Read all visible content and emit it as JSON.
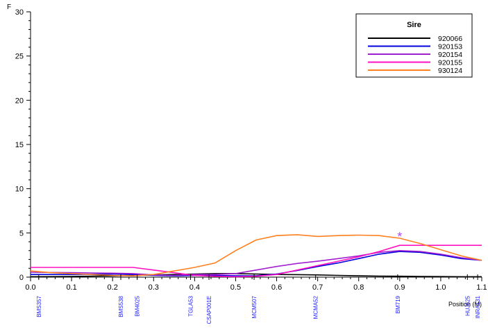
{
  "chart_data": {
    "type": "line",
    "ylabel": "F",
    "xlabel": "Position (M)",
    "xlim": [
      0,
      1.1
    ],
    "ylim": [
      0,
      30
    ],
    "xticks": [
      0.0,
      0.1,
      0.2,
      0.3,
      0.4,
      0.5,
      0.6,
      0.7,
      0.8,
      0.9,
      1.0,
      1.1
    ],
    "xtick_labels": [
      "0.0",
      "0.1",
      "0.2",
      "0.3",
      "0.4",
      "0.5",
      "0.6",
      "0.7",
      "0.8",
      "0.9",
      "1.0",
      "1.1"
    ],
    "yticks": [
      0,
      5,
      10,
      15,
      20,
      25,
      30
    ],
    "ytick_labels": [
      "0",
      "5",
      "10",
      "15",
      "20",
      "25",
      "30"
    ],
    "grid": false,
    "legend": {
      "title": "Sire",
      "position": "top-right"
    },
    "markers": [
      {
        "name": "BMS357",
        "x": 0.02
      },
      {
        "name": "BMS538",
        "x": 0.22
      },
      {
        "name": "BM4025",
        "x": 0.26
      },
      {
        "name": "TGLA53",
        "x": 0.39
      },
      {
        "name": "CSAP001E",
        "x": 0.435
      },
      {
        "name": "MCM507",
        "x": 0.545
      },
      {
        "name": "MCMA52",
        "x": 0.695
      },
      {
        "name": "BM719",
        "x": 0.895
      },
      {
        "name": "HUJ625",
        "x": 1.065
      },
      {
        "name": "INRA131",
        "x": 1.09
      }
    ],
    "peak_marker": {
      "symbol": "*",
      "x": 0.9,
      "y": 4.7,
      "color": "#b040ff"
    },
    "series": [
      {
        "name": "920066",
        "color": "#000000",
        "x": [
          0,
          0.1,
          0.2,
          0.3,
          0.35,
          0.4,
          0.45,
          0.5,
          0.55,
          0.6,
          0.65,
          0.7,
          0.75,
          0.8,
          0.85,
          0.9,
          0.95,
          1.0,
          1.05,
          1.1
        ],
        "values": [
          0.05,
          0.08,
          0.15,
          0.25,
          0.3,
          0.35,
          0.4,
          0.4,
          0.35,
          0.3,
          0.28,
          0.25,
          0.2,
          0.15,
          0.12,
          0.1,
          0.08,
          0.06,
          0.05,
          0.05
        ]
      },
      {
        "name": "920153",
        "color": "#0000dd",
        "x": [
          0,
          0.1,
          0.2,
          0.25,
          0.3,
          0.35,
          0.4,
          0.45,
          0.5,
          0.55,
          0.6,
          0.65,
          0.7,
          0.75,
          0.8,
          0.85,
          0.9,
          0.95,
          1.0,
          1.05,
          1.1
        ],
        "values": [
          0.3,
          0.3,
          0.35,
          0.3,
          0.2,
          0.15,
          0.2,
          0.2,
          0.15,
          0.15,
          0.35,
          0.75,
          1.2,
          1.6,
          2.1,
          2.6,
          2.9,
          2.8,
          2.5,
          2.1,
          1.9
        ]
      },
      {
        "name": "920154",
        "color": "#a020d0",
        "x": [
          0,
          0.1,
          0.2,
          0.25,
          0.3,
          0.35,
          0.4,
          0.45,
          0.5,
          0.55,
          0.6,
          0.65,
          0.7,
          0.75,
          0.8,
          0.85,
          0.9,
          0.95,
          1.0,
          1.05,
          1.1
        ],
        "values": [
          0.55,
          0.5,
          0.45,
          0.4,
          0.25,
          0.2,
          0.3,
          0.3,
          0.4,
          0.8,
          1.2,
          1.55,
          1.8,
          2.1,
          2.4,
          2.8,
          3.0,
          2.9,
          2.6,
          2.2,
          1.9
        ]
      },
      {
        "name": "920155",
        "color": "#ff10c0",
        "x": [
          0,
          0.1,
          0.2,
          0.25,
          0.3,
          0.35,
          0.4,
          0.45,
          0.5,
          0.55,
          0.6,
          0.65,
          0.7,
          0.75,
          0.8,
          0.85,
          0.9,
          0.95,
          1.0,
          1.05,
          1.1
        ],
        "values": [
          1.1,
          1.1,
          1.1,
          1.1,
          0.8,
          0.5,
          0.2,
          0.1,
          0.05,
          0.1,
          0.3,
          0.8,
          1.3,
          1.8,
          2.3,
          2.9,
          3.6,
          3.6,
          3.6,
          3.6,
          3.6
        ]
      },
      {
        "name": "930124",
        "color": "#ff8020",
        "x": [
          0,
          0.05,
          0.1,
          0.15,
          0.2,
          0.25,
          0.3,
          0.35,
          0.4,
          0.45,
          0.5,
          0.55,
          0.6,
          0.65,
          0.7,
          0.75,
          0.8,
          0.85,
          0.9,
          0.95,
          1.0,
          1.05,
          1.1
        ],
        "values": [
          0.7,
          0.5,
          0.4,
          0.3,
          0.2,
          0.15,
          0.3,
          0.7,
          1.1,
          1.6,
          3.0,
          4.2,
          4.7,
          4.8,
          4.6,
          4.7,
          4.75,
          4.7,
          4.4,
          3.8,
          3.1,
          2.4,
          1.9
        ]
      }
    ]
  }
}
